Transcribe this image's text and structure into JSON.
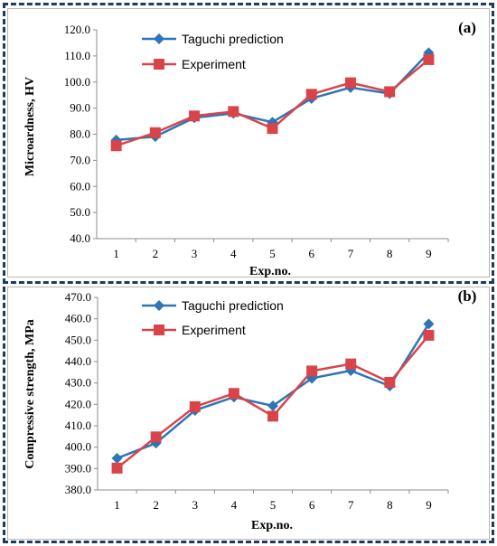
{
  "chart_data": [
    {
      "type": "line",
      "panel_label": "(a)",
      "xlabel": "Exp.no.",
      "ylabel": "Microardness, HV",
      "categories": [
        "1",
        "2",
        "3",
        "4",
        "5",
        "6",
        "7",
        "8",
        "9"
      ],
      "ylim": [
        40.0,
        120.0
      ],
      "yticks": [
        "40.0",
        "50.0",
        "60.0",
        "70.0",
        "80.0",
        "90.0",
        "100.0",
        "110.0",
        "120.0"
      ],
      "legend_position": "top-left",
      "grid": false,
      "series": [
        {
          "name": "Taguchi prediction",
          "color": "#2e75b6",
          "marker": "diamond",
          "values": [
            77.8,
            79.1,
            86.3,
            88.0,
            84.6,
            93.7,
            97.9,
            95.6,
            111.2
          ]
        },
        {
          "name": "Experiment",
          "color": "#d9444a",
          "marker": "square",
          "values": [
            75.6,
            80.6,
            87.0,
            88.7,
            82.2,
            95.3,
            99.7,
            96.3,
            108.6
          ]
        }
      ]
    },
    {
      "type": "line",
      "panel_label": "(b)",
      "xlabel": "Exp.no.",
      "ylabel": "Compressive strength, MPa",
      "categories": [
        "1",
        "2",
        "3",
        "4",
        "5",
        "6",
        "7",
        "8",
        "9"
      ],
      "ylim": [
        380.0,
        470.0
      ],
      "yticks": [
        "380.0",
        "390.0",
        "400.0",
        "410.0",
        "420.0",
        "430.0",
        "440.0",
        "450.0",
        "460.0",
        "470.0"
      ],
      "legend_position": "top-left",
      "grid": false,
      "series": [
        {
          "name": "Taguchi prediction",
          "color": "#2e75b6",
          "marker": "diamond",
          "values": [
            394.8,
            401.9,
            417.2,
            423.4,
            419.3,
            432.2,
            435.8,
            428.6,
            457.6
          ]
        },
        {
          "name": "Experiment",
          "color": "#d9444a",
          "marker": "square",
          "values": [
            390.2,
            404.8,
            418.9,
            425.1,
            414.5,
            435.6,
            438.9,
            430.3,
            452.3
          ]
        }
      ]
    }
  ]
}
